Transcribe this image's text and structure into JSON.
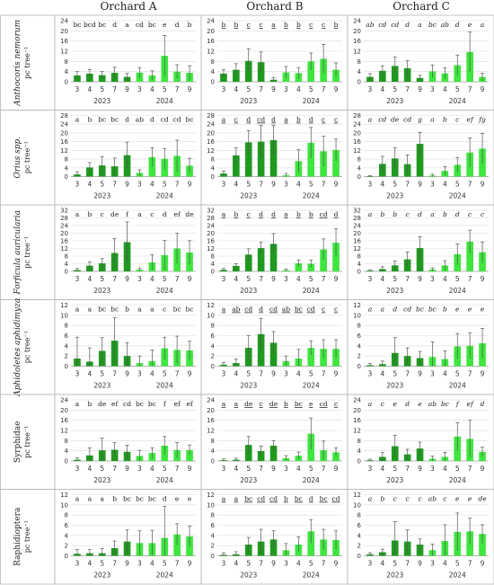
{
  "column_titles": [
    "Orchard A",
    "Orchard B",
    "Orchard C"
  ],
  "x_tick_labels": [
    "3",
    "4",
    "5",
    "7",
    "9",
    "3",
    "4",
    "5",
    "7",
    "9"
  ],
  "year_labels": [
    "2023",
    "2024"
  ],
  "colors": {
    "year_2023": "#1f9a1f",
    "year_2024": "#3ee63e"
  },
  "unit_label": "pc tree⁻¹",
  "rows": [
    {
      "name": "Anthocoris nemorum",
      "italic": true,
      "ymax": 24,
      "ticks": [
        0,
        4,
        8,
        12,
        16,
        20,
        24
      ],
      "panels": [
        {
          "values": [
            2.5,
            3.2,
            2.6,
            3.5,
            1.9,
            3.6,
            2.5,
            10.2,
            4.0,
            3.5
          ],
          "errors": [
            1.5,
            1.6,
            1.4,
            2.2,
            1.4,
            2.0,
            1.8,
            8.0,
            2.7,
            2.8
          ],
          "letters": [
            "bc",
            "bcd",
            "bc",
            "d",
            "a",
            "cd",
            "bc",
            "e",
            "d",
            "b"
          ],
          "letter_style": "plain"
        },
        {
          "values": [
            3.2,
            4.7,
            8.2,
            7.7,
            0.8,
            3.7,
            3.4,
            8.0,
            9.0,
            4.7
          ],
          "errors": [
            1.5,
            2.4,
            4.8,
            4.0,
            0.9,
            2.3,
            2.2,
            3.3,
            5.7,
            2.7
          ],
          "letters": [
            "b",
            "b",
            "c",
            "c",
            "a",
            "b",
            "b",
            "c",
            "c",
            "b"
          ],
          "letter_style": "underline"
        },
        {
          "values": [
            1.9,
            4.3,
            6.2,
            5.3,
            1.5,
            4.1,
            3.3,
            6.5,
            11.7,
            1.9
          ],
          "errors": [
            1.3,
            2.0,
            3.5,
            3.0,
            1.0,
            2.5,
            2.2,
            4.0,
            7.8,
            1.5
          ],
          "letters": [
            "ab",
            "cd",
            "cd",
            "d",
            "a",
            "bc",
            "ab",
            "d",
            "e",
            "a"
          ],
          "letter_style": "italic"
        }
      ]
    },
    {
      "name": "Orius spp.",
      "italic": true,
      "ymax": 28,
      "ticks": [
        0,
        4,
        8,
        12,
        16,
        20,
        24,
        28
      ],
      "panels": [
        {
          "values": [
            1.0,
            4.2,
            5.1,
            4.7,
            9.8,
            1.7,
            8.9,
            8.1,
            9.5,
            5.0
          ],
          "errors": [
            1.2,
            2.2,
            4.0,
            3.8,
            6.0,
            1.4,
            4.3,
            4.8,
            7.2,
            3.4
          ],
          "letters": [
            "a",
            "b",
            "bc",
            "bc",
            "d",
            "ab",
            "d",
            "cd",
            "cd",
            "bc"
          ],
          "letter_style": "plain"
        },
        {
          "values": [
            1.4,
            9.7,
            15.7,
            16.0,
            16.7,
            0.6,
            7.1,
            15.5,
            11.6,
            12.2
          ],
          "errors": [
            1.0,
            3.5,
            5.4,
            7.5,
            6.8,
            0.8,
            5.2,
            7.0,
            6.9,
            5.0
          ],
          "letters": [
            "a",
            "c",
            "d",
            "cd",
            "d",
            "a",
            "b",
            "d",
            "c",
            "c"
          ],
          "letter_style": "underline"
        },
        {
          "values": [
            0.2,
            5.8,
            8.3,
            5.7,
            15.0,
            0.5,
            2.6,
            5.4,
            11.0,
            12.8
          ],
          "errors": [
            0.3,
            3.5,
            5.0,
            4.2,
            5.3,
            0.6,
            2.0,
            3.3,
            6.7,
            6.9
          ],
          "letters": [
            "a",
            "cd",
            "de",
            "cd",
            "g",
            "a",
            "b",
            "c",
            "ef",
            "fg"
          ],
          "letter_style": "italic"
        }
      ]
    },
    {
      "name": "Forficula auricularia",
      "italic": true,
      "ymax": 32,
      "ticks": [
        0,
        4,
        8,
        12,
        16,
        20,
        24,
        28,
        32
      ],
      "panels": [
        {
          "values": [
            0.7,
            3.0,
            4.2,
            9.6,
            15.3,
            0.9,
            4.7,
            8.5,
            12.0,
            9.9
          ],
          "errors": [
            0.8,
            2.0,
            2.5,
            7.6,
            10.6,
            0.9,
            4.0,
            7.7,
            8.0,
            6.2
          ],
          "letters": [
            "a",
            "b",
            "c",
            "de",
            "f",
            "a",
            "c",
            "d",
            "ef",
            "de"
          ],
          "letter_style": "plain"
        },
        {
          "values": [
            0.8,
            2.9,
            8.8,
            12.2,
            14.4,
            0.6,
            4.2,
            4.0,
            11.5,
            15.0
          ],
          "errors": [
            0.7,
            1.2,
            3.0,
            3.0,
            5.4,
            0.6,
            1.8,
            2.0,
            5.5,
            7.3
          ],
          "letters": [
            "a",
            "b",
            "c",
            "d",
            "d",
            "a",
            "b",
            "b",
            "cd",
            "d"
          ],
          "letter_style": "underline"
        },
        {
          "values": [
            0.4,
            1.2,
            3.1,
            6.3,
            12.2,
            1.0,
            3.1,
            9.0,
            15.6,
            10.0
          ],
          "errors": [
            0.5,
            1.2,
            2.4,
            3.8,
            6.0,
            0.8,
            2.5,
            5.4,
            6.0,
            5.4
          ],
          "letters": [
            "a",
            "b",
            "b",
            "c",
            "d",
            "a",
            "b",
            "d",
            "c",
            "c"
          ],
          "letter_style": "italic"
        }
      ]
    },
    {
      "name": "Aphidoletes aphidimyza",
      "italic": true,
      "ymax": 12,
      "ticks": [
        0,
        2,
        4,
        6,
        8,
        10,
        12
      ],
      "panels": [
        {
          "values": [
            1.5,
            0.9,
            3.0,
            5.0,
            2.0,
            0.6,
            1.0,
            3.5,
            3.2,
            3.1
          ],
          "errors": [
            4.2,
            2.7,
            2.6,
            4.5,
            2.6,
            1.4,
            2.2,
            2.2,
            2.7,
            1.8
          ],
          "letters": [
            "a",
            "a",
            "bc",
            "bc",
            "b",
            "a",
            "a",
            "c",
            "bc",
            "bc"
          ],
          "letter_style": "plain"
        },
        {
          "values": [
            0.3,
            0.6,
            3.6,
            6.3,
            4.6,
            1.0,
            1.5,
            3.6,
            3.4,
            3.4
          ],
          "errors": [
            0.4,
            0.8,
            2.4,
            3.1,
            2.2,
            1.0,
            1.8,
            1.4,
            1.8,
            1.8
          ],
          "letters": [
            "a",
            "ab",
            "cd",
            "d",
            "cd",
            "ab",
            "bc",
            "cd",
            "c",
            "c"
          ],
          "letter_style": "underline"
        },
        {
          "values": [
            0.2,
            0.4,
            2.6,
            2.0,
            1.6,
            1.8,
            1.4,
            3.9,
            4.0,
            4.5
          ],
          "errors": [
            0.3,
            0.6,
            3.0,
            1.6,
            1.3,
            3.0,
            1.6,
            2.5,
            2.5,
            2.9
          ],
          "letters": [
            "a",
            "a",
            "d",
            "cd",
            "bc",
            "bc",
            "b",
            "e",
            "e",
            "e"
          ],
          "letter_style": "italic"
        }
      ]
    },
    {
      "name": "Syrphidae",
      "italic": false,
      "ymax": 24,
      "ticks": [
        0,
        4,
        8,
        12,
        16,
        20,
        24
      ],
      "panels": [
        {
          "values": [
            0.5,
            2.2,
            4.2,
            4.4,
            3.6,
            2.0,
            3.2,
            6.0,
            4.3,
            4.3
          ],
          "errors": [
            0.7,
            3.0,
            4.8,
            2.8,
            2.6,
            2.2,
            2.0,
            3.6,
            3.0,
            2.0
          ],
          "letters": [
            "a",
            "b",
            "de",
            "ef",
            "cd",
            "bc",
            "bc",
            "f",
            "ef",
            "ef"
          ],
          "letter_style": "plain"
        },
        {
          "values": [
            0.3,
            0.5,
            6.3,
            3.9,
            6.0,
            1.1,
            2.1,
            10.7,
            4.2,
            3.4
          ],
          "errors": [
            0.5,
            0.6,
            3.3,
            2.0,
            2.0,
            1.0,
            1.4,
            6.2,
            3.6,
            1.8
          ],
          "letters": [
            "a",
            "a",
            "de",
            "c",
            "de",
            "b",
            "bc",
            "e",
            "cd",
            "c"
          ],
          "letter_style": "underline"
        },
        {
          "values": [
            0.3,
            1.6,
            5.8,
            2.6,
            4.9,
            0.9,
            1.6,
            9.6,
            8.7,
            3.6
          ],
          "errors": [
            0.4,
            1.7,
            4.3,
            2.0,
            2.5,
            1.0,
            1.8,
            5.5,
            7.3,
            1.8
          ],
          "letters": [
            "a",
            "c",
            "e",
            "d",
            "e",
            "ab",
            "bc",
            "f",
            "ef",
            "d"
          ],
          "letter_style": "italic"
        }
      ]
    },
    {
      "name": "Raphidioptera",
      "italic": false,
      "ymax": 12,
      "ticks": [
        0,
        2,
        4,
        6,
        8,
        10,
        12
      ],
      "panels": [
        {
          "values": [
            0.4,
            0.5,
            0.5,
            1.5,
            2.8,
            2.5,
            2.5,
            3.5,
            4.2,
            3.8
          ],
          "errors": [
            0.8,
            0.7,
            0.9,
            1.4,
            2.3,
            2.4,
            2.5,
            6.2,
            2.1,
            2.0
          ],
          "letters": [
            "a",
            "a",
            "a",
            "b",
            "bc",
            "bc",
            "bc",
            "d",
            "e",
            "e"
          ],
          "letter_style": "plain"
        },
        {
          "values": [
            0.2,
            0.3,
            2.2,
            2.8,
            3.2,
            1.1,
            2.2,
            4.8,
            3.2,
            3.1
          ],
          "errors": [
            0.4,
            0.5,
            1.4,
            2.4,
            1.7,
            1.3,
            1.5,
            2.3,
            2.0,
            1.8
          ],
          "letters": [
            "a",
            "a",
            "bc",
            "cd",
            "cd",
            "b",
            "bc",
            "d",
            "bc",
            "cd"
          ],
          "letter_style": "underline"
        },
        {
          "values": [
            0.3,
            0.7,
            3.0,
            2.8,
            2.2,
            1.1,
            2.9,
            4.7,
            4.8,
            4.3
          ],
          "errors": [
            0.3,
            0.6,
            3.7,
            2.3,
            1.1,
            1.2,
            3.2,
            3.7,
            2.6,
            1.8
          ],
          "letters": [
            "a",
            "b",
            "c",
            "c",
            "c",
            "ab",
            "c",
            "e",
            "e",
            "de"
          ],
          "letter_style": "italic"
        }
      ]
    }
  ],
  "chart_data": {
    "type": "bar",
    "title": "",
    "ylabel": "pc tree⁻¹",
    "categories": [
      "2023-3",
      "2023-4",
      "2023-5",
      "2023-7",
      "2023-9",
      "2024-3",
      "2024-4",
      "2024-5",
      "2024-7",
      "2024-9"
    ],
    "series": []
  }
}
